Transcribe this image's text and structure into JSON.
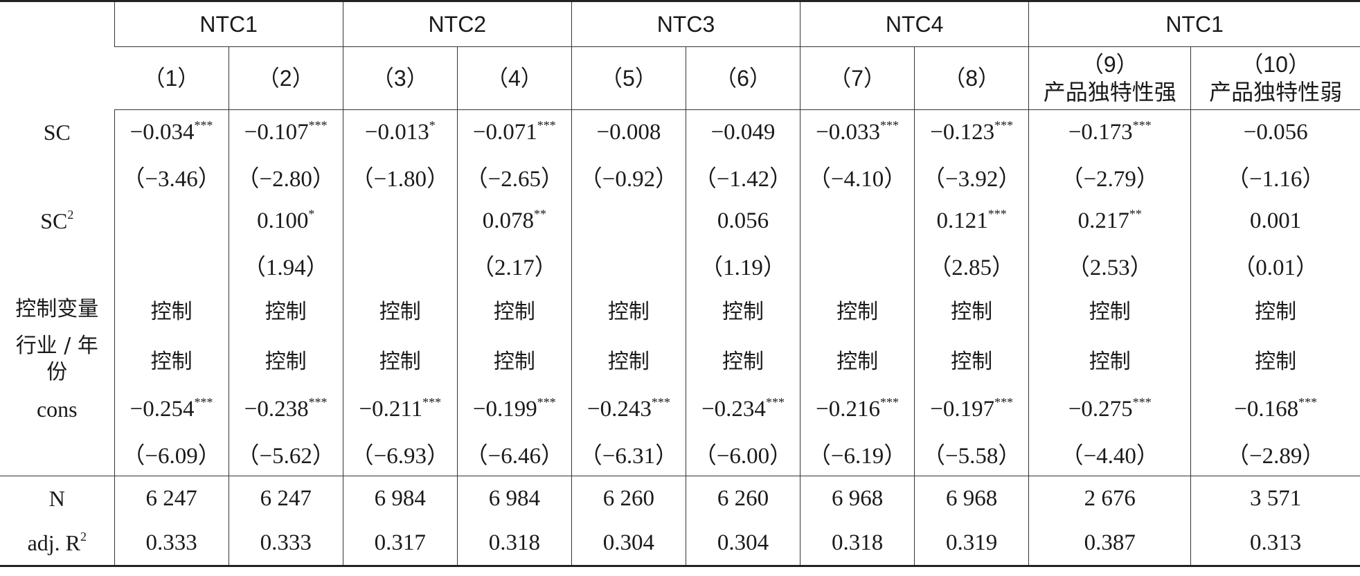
{
  "header_groups": [
    {
      "label": "NTC1",
      "span": 2
    },
    {
      "label": "NTC2",
      "span": 2
    },
    {
      "label": "NTC3",
      "span": 2
    },
    {
      "label": "NTC4",
      "span": 2
    },
    {
      "label": "NTC1",
      "span": 2
    }
  ],
  "columns": [
    "（1）",
    "（2）",
    "（3）",
    "（4）",
    "（5）",
    "（6）",
    "（7）",
    "（8）",
    "（9）",
    "（10）"
  ],
  "column_sublabels": [
    "",
    "",
    "",
    "",
    "",
    "",
    "",
    "",
    "产品独特性强",
    "产品独特性弱"
  ],
  "rows": {
    "sc_label": "SC",
    "sc": [
      {
        "v": "−0.034",
        "s": "***"
      },
      {
        "v": "−0.107",
        "s": "***"
      },
      {
        "v": "−0.013",
        "s": "*"
      },
      {
        "v": "−0.071",
        "s": "***"
      },
      {
        "v": "−0.008",
        "s": ""
      },
      {
        "v": "−0.049",
        "s": ""
      },
      {
        "v": "−0.033",
        "s": "***"
      },
      {
        "v": "−0.123",
        "s": "***"
      },
      {
        "v": "−0.173",
        "s": "***"
      },
      {
        "v": "−0.056",
        "s": ""
      }
    ],
    "sc_t": [
      "（−3.46）",
      "（−2.80）",
      "（−1.80）",
      "（−2.65）",
      "（−0.92）",
      "（−1.42）",
      "（−4.10）",
      "（−3.92）",
      "（−2.79）",
      "（−1.16）"
    ],
    "sc2_label": "SC",
    "sc2_label_sup": "2",
    "sc2": [
      {
        "v": "",
        "s": ""
      },
      {
        "v": "0.100",
        "s": "*"
      },
      {
        "v": "",
        "s": ""
      },
      {
        "v": "0.078",
        "s": "**"
      },
      {
        "v": "",
        "s": ""
      },
      {
        "v": "0.056",
        "s": ""
      },
      {
        "v": "",
        "s": ""
      },
      {
        "v": "0.121",
        "s": "***"
      },
      {
        "v": "0.217",
        "s": "**"
      },
      {
        "v": "0.001",
        "s": ""
      }
    ],
    "sc2_t": [
      "",
      "（1.94）",
      "",
      "（2.17）",
      "",
      "（1.19）",
      "",
      "（2.85）",
      "（2.53）",
      "（0.01）"
    ],
    "control_label": "控制变量",
    "control": [
      "控制",
      "控制",
      "控制",
      "控制",
      "控制",
      "控制",
      "控制",
      "控制",
      "控制",
      "控制"
    ],
    "industry_label_1": "行业 / 年",
    "industry_label_2": "份",
    "industry": [
      "控制",
      "控制",
      "控制",
      "控制",
      "控制",
      "控制",
      "控制",
      "控制",
      "控制",
      "控制"
    ],
    "cons_label": "cons",
    "cons": [
      {
        "v": "−0.254",
        "s": "***"
      },
      {
        "v": "−0.238",
        "s": "***"
      },
      {
        "v": "−0.211",
        "s": "***"
      },
      {
        "v": "−0.199",
        "s": "***"
      },
      {
        "v": "−0.243",
        "s": "***"
      },
      {
        "v": "−0.234",
        "s": "***"
      },
      {
        "v": "−0.216",
        "s": "***"
      },
      {
        "v": "−0.197",
        "s": "***"
      },
      {
        "v": "−0.275",
        "s": "***"
      },
      {
        "v": "−0.168",
        "s": "***"
      }
    ],
    "cons_t": [
      "（−6.09）",
      "（−5.62）",
      "（−6.93）",
      "（−6.46）",
      "（−6.31）",
      "（−6.00）",
      "（−6.19）",
      "（−5.58）",
      "（−4.40）",
      "（−2.89）"
    ],
    "n_label": "N",
    "n": [
      "6 247",
      "6 247",
      "6 984",
      "6 984",
      "6 260",
      "6 260",
      "6 968",
      "6 968",
      "2 676",
      "3 571"
    ],
    "r2_label": "adj. R",
    "r2_label_sup": "2",
    "r2": [
      "0.333",
      "0.333",
      "0.317",
      "0.318",
      "0.304",
      "0.304",
      "0.318",
      "0.319",
      "0.387",
      "0.313"
    ]
  }
}
